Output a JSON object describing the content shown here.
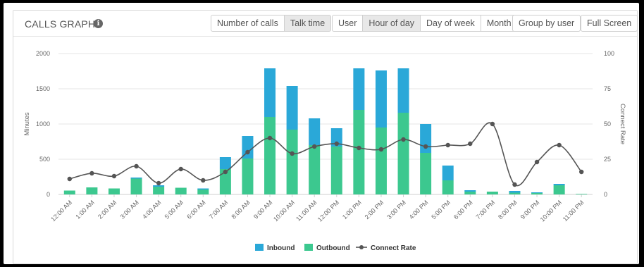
{
  "header": {
    "title": "CALLS GRAPH",
    "info_icon": "info-icon",
    "metric_buttons": [
      "Number of calls",
      "Talk time"
    ],
    "active_metric": "Talk time",
    "group_buttons": [
      "User",
      "Hour of day",
      "Day of week",
      "Month"
    ],
    "active_group": "Hour of day",
    "group_by_user_label": "Group by user",
    "full_screen_label": "Full Screen"
  },
  "chart_data": {
    "type": "bar",
    "stacked": true,
    "ylabel": "Minutes",
    "y2label": "Connect Rate",
    "ylim": [
      0,
      2000
    ],
    "y2lim": [
      0,
      100
    ],
    "yticks": [
      0,
      500,
      1000,
      1500,
      2000
    ],
    "y2ticks": [
      0,
      25,
      50,
      75,
      100
    ],
    "categories": [
      "12:00 AM",
      "1:00 AM",
      "2:00 AM",
      "3:00 AM",
      "4:00 AM",
      "5:00 AM",
      "6:00 AM",
      "7:00 AM",
      "8:00 AM",
      "9:00 AM",
      "10:00 AM",
      "11:00 AM",
      "12:00 PM",
      "1:00 PM",
      "2:00 PM",
      "3:00 PM",
      "4:00 PM",
      "5:00 PM",
      "6:00 PM",
      "7:00 PM",
      "8:00 PM",
      "9:00 PM",
      "10:00 PM",
      "11:00 PM"
    ],
    "series": [
      {
        "name": "Outbound",
        "color": "#3cc88f",
        "values": [
          55,
          100,
          85,
          225,
          110,
          95,
          70,
          360,
          510,
          1100,
          920,
          700,
          680,
          1200,
          950,
          1160,
          590,
          200,
          40,
          40,
          25,
          20,
          130,
          8
        ]
      },
      {
        "name": "Inbound",
        "color": "#2aa8d8",
        "values": [
          0,
          0,
          0,
          15,
          20,
          0,
          15,
          170,
          320,
          690,
          620,
          380,
          260,
          590,
          810,
          630,
          410,
          210,
          20,
          0,
          25,
          10,
          20,
          0
        ]
      },
      {
        "name": "Connect Rate",
        "color": "#555555",
        "type": "line",
        "axis": "right",
        "values": [
          11,
          15,
          13,
          20,
          8,
          18,
          10,
          16,
          30,
          40,
          29,
          34,
          36,
          33,
          32,
          39,
          34,
          35,
          36,
          50,
          7,
          23,
          35,
          16
        ]
      }
    ],
    "legend_position": "bottom-center",
    "grid": true
  }
}
